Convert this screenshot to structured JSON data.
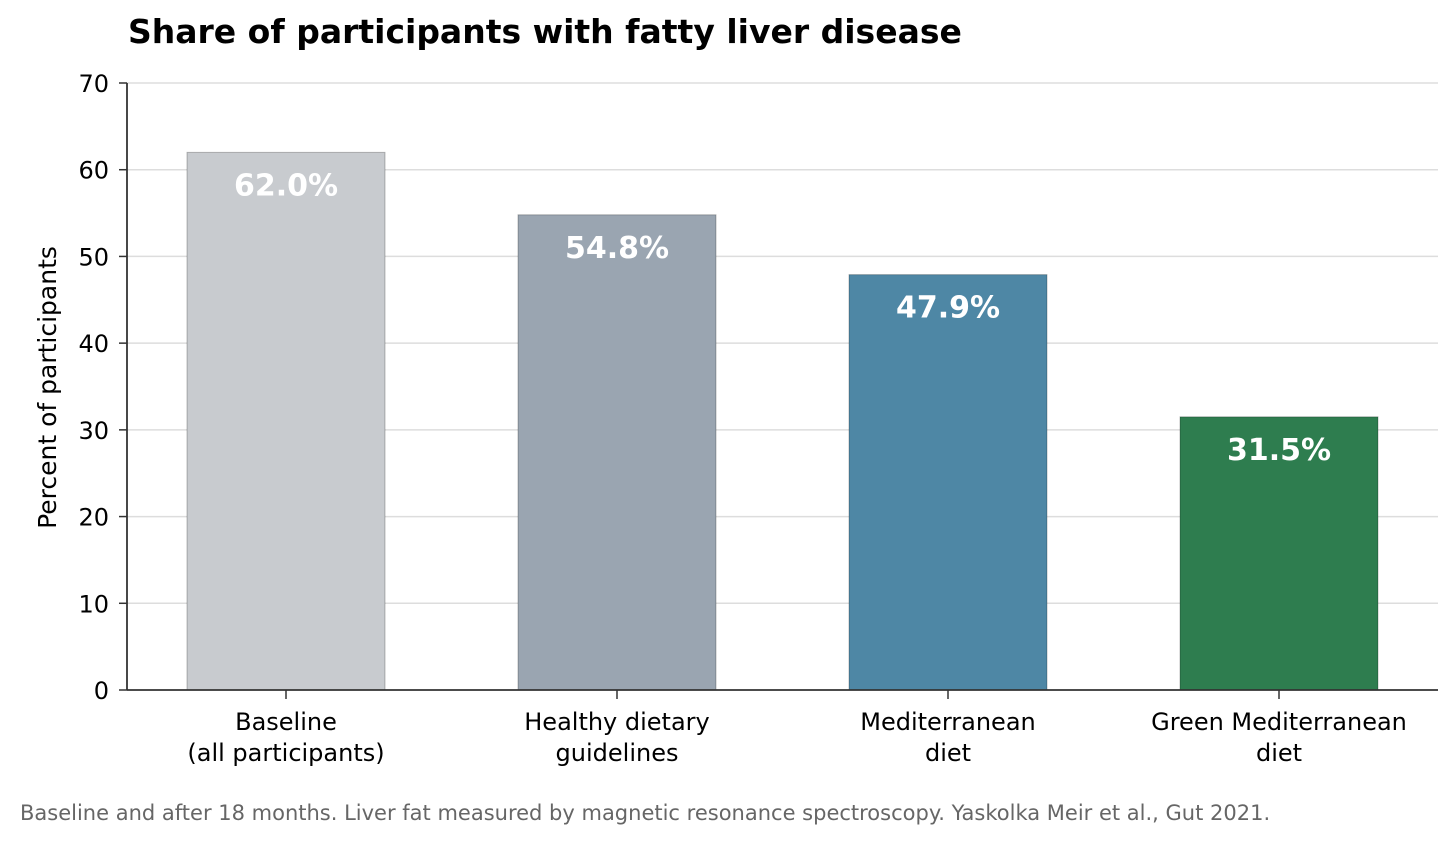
{
  "chart_data": {
    "type": "bar",
    "title": "Share of participants with fatty liver disease",
    "ylabel": "Percent of participants",
    "xlabel": "",
    "ylim": [
      0,
      70
    ],
    "yticks": [
      0,
      10,
      20,
      30,
      40,
      50,
      60,
      70
    ],
    "grid": "horizontal",
    "categories": [
      [
        "Baseline",
        "(all participants)"
      ],
      [
        "Healthy dietary",
        "guidelines"
      ],
      [
        "Mediterranean",
        "diet"
      ],
      [
        "Green Mediterranean",
        "diet"
      ]
    ],
    "values": [
      62.0,
      54.8,
      47.9,
      31.5
    ],
    "value_labels": [
      "62.0%",
      "54.8%",
      "47.9%",
      "31.5%"
    ],
    "colors": [
      "#c8cbcf",
      "#9aa5b1",
      "#4e87a5",
      "#2e7d4f"
    ],
    "footnote": "Baseline and after 18 months. Liver fat measured by magnetic resonance spectroscopy. Yaskolka Meir et al., Gut 2021."
  }
}
